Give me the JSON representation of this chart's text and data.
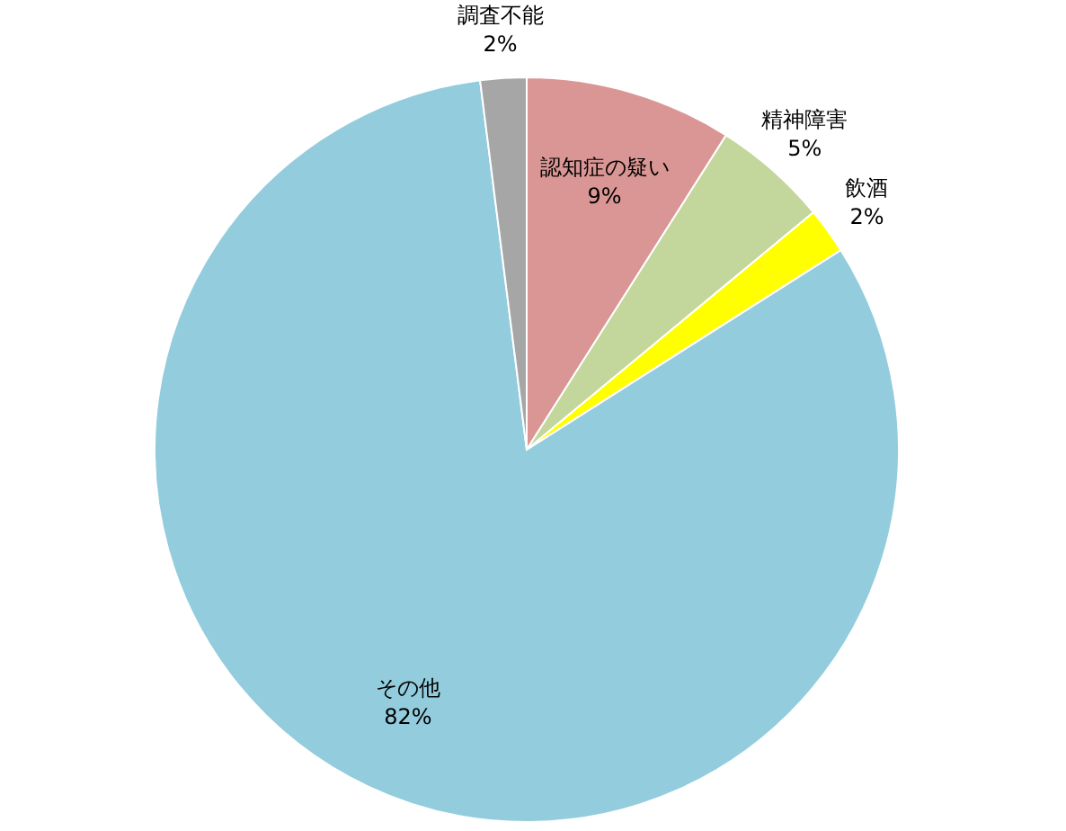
{
  "chart_data": {
    "type": "pie",
    "categories": [
      "認知症の疑い",
      "精神障害",
      "飲酒",
      "その他",
      "調査不能"
    ],
    "values": [
      9,
      5,
      2,
      82,
      2
    ],
    "value_labels": [
      "9%",
      "5%",
      "2%",
      "82%",
      "2%"
    ],
    "colors": [
      "#d99694",
      "#c3d69b",
      "#ffff00",
      "#93cddd",
      "#a6a6a6"
    ]
  }
}
